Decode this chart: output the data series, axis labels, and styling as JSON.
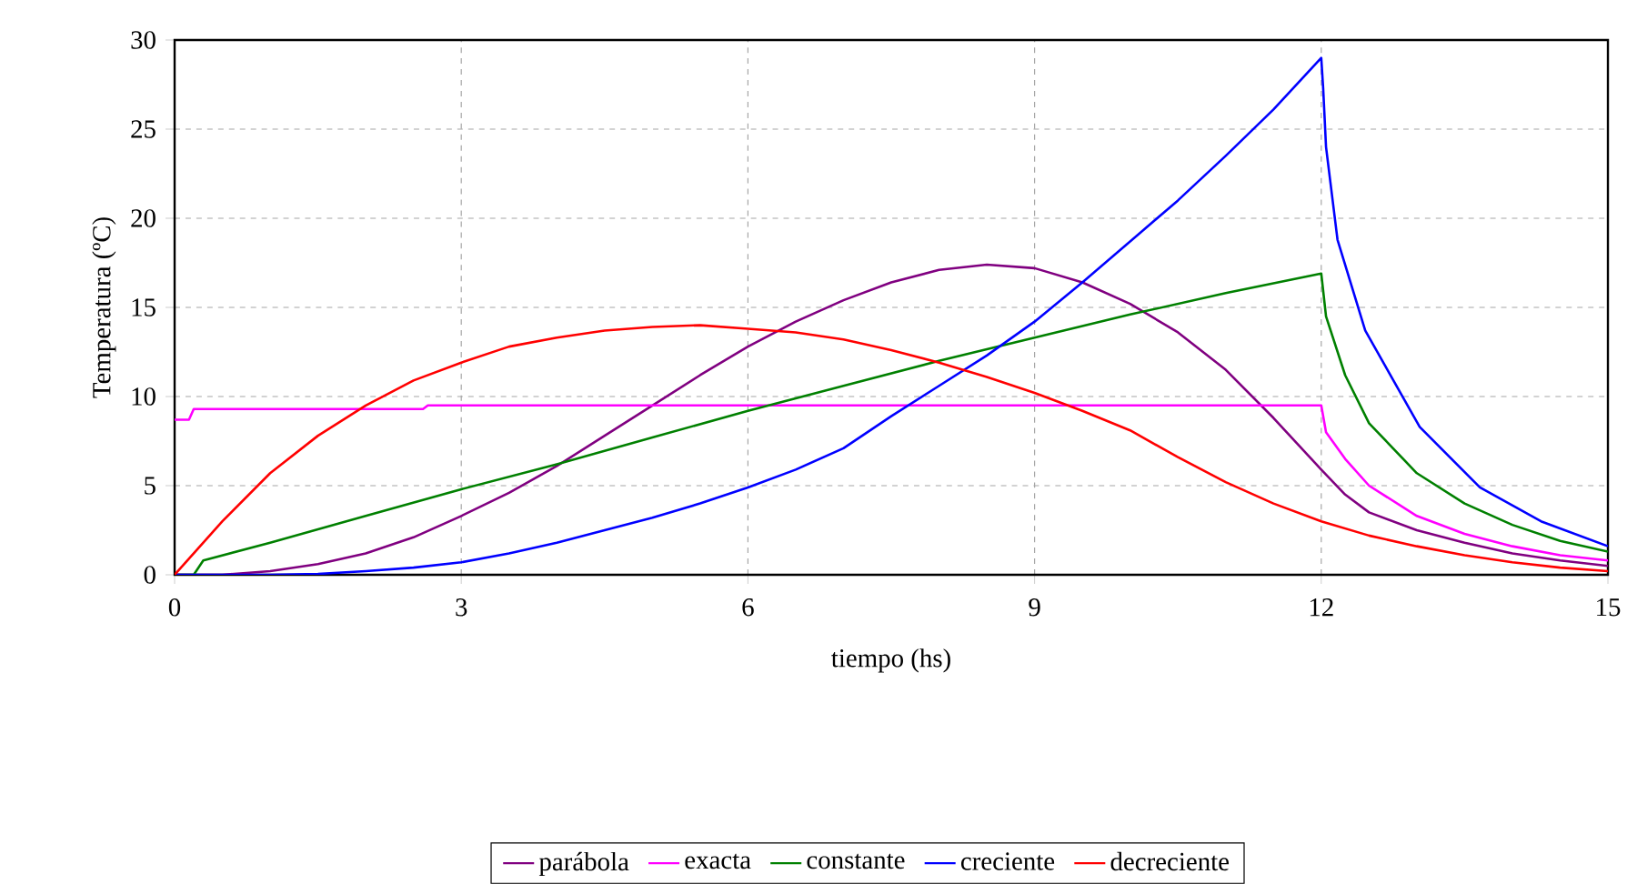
{
  "chart_data": {
    "type": "line",
    "xlabel": "tiempo (hs)",
    "ylabel": "Temperatura (ºC)",
    "xlim": [
      0,
      15
    ],
    "ylim": [
      0,
      30
    ],
    "xticks": [
      0,
      3,
      6,
      9,
      12,
      15
    ],
    "yticks": [
      0,
      5,
      10,
      15,
      20,
      25,
      30
    ],
    "grid": true,
    "legend": "bottom",
    "line_style": "solid",
    "marker": "none",
    "series": [
      {
        "name": "parábola",
        "color": "#800080",
        "x": [
          0,
          0.5,
          1,
          1.5,
          2,
          2.5,
          3,
          3.5,
          4,
          4.5,
          5,
          5.5,
          6,
          6.5,
          7,
          7.5,
          8,
          8.5,
          9,
          9.5,
          10,
          10.5,
          11,
          11.5,
          12,
          12.25,
          12.5,
          13,
          13.5,
          14,
          14.5,
          15
        ],
        "values": [
          0,
          0,
          0.2,
          0.6,
          1.2,
          2.1,
          3.3,
          4.6,
          6.1,
          7.8,
          9.5,
          11.2,
          12.8,
          14.2,
          15.4,
          16.4,
          17.1,
          17.4,
          17.2,
          16.4,
          15.2,
          13.6,
          11.5,
          8.8,
          5.9,
          4.5,
          3.5,
          2.5,
          1.8,
          1.2,
          0.8,
          0.5
        ]
      },
      {
        "name": "exacta",
        "color": "#ff00ff",
        "x": [
          0,
          0.15,
          0.2,
          2.6,
          2.65,
          12,
          12.05,
          12.25,
          12.5,
          13,
          13.5,
          14,
          14.5,
          15
        ],
        "values": [
          8.7,
          8.7,
          9.3,
          9.3,
          9.5,
          9.5,
          8.0,
          6.5,
          5.0,
          3.3,
          2.3,
          1.6,
          1.1,
          0.8
        ]
      },
      {
        "name": "constante",
        "color": "#008000",
        "x": [
          0,
          0.2,
          0.3,
          1,
          2,
          3,
          4,
          5,
          6,
          7,
          8,
          9,
          10,
          11,
          12,
          12.05,
          12.25,
          12.5,
          13,
          13.5,
          14,
          14.5,
          15
        ],
        "values": [
          0,
          0,
          0.8,
          1.8,
          3.3,
          4.8,
          6.2,
          7.7,
          9.2,
          10.6,
          12.0,
          13.3,
          14.6,
          15.8,
          16.9,
          14.5,
          11.2,
          8.5,
          5.7,
          4.0,
          2.8,
          1.9,
          1.3
        ]
      },
      {
        "name": "creciente",
        "color": "#0000ff",
        "x": [
          0,
          1,
          1.5,
          2,
          2.5,
          3,
          3.5,
          4,
          4.5,
          5,
          5.5,
          6,
          6.5,
          7,
          7.5,
          8,
          8.5,
          9,
          9.5,
          10,
          10.5,
          11,
          11.5,
          12,
          12.02,
          12.05,
          12.17,
          12.46,
          13.03,
          13.66,
          14.3,
          15
        ],
        "values": [
          0,
          0,
          0.05,
          0.2,
          0.4,
          0.7,
          1.2,
          1.8,
          2.5,
          3.2,
          4.0,
          4.9,
          5.9,
          7.1,
          8.9,
          10.6,
          12.3,
          14.2,
          16.4,
          18.7,
          21.0,
          23.5,
          26.1,
          29.0,
          27.3,
          24.0,
          18.8,
          13.7,
          8.3,
          4.9,
          3.0,
          1.6
        ]
      },
      {
        "name": "decreciente",
        "color": "#ff0000",
        "x": [
          0,
          0.5,
          1,
          1.5,
          2,
          2.5,
          3,
          3.5,
          4,
          4.5,
          5,
          5.5,
          6,
          6.5,
          7,
          7.5,
          8,
          8.5,
          9,
          9.5,
          10,
          10.5,
          11,
          11.5,
          12,
          12.5,
          13,
          13.5,
          14,
          14.5,
          15
        ],
        "values": [
          0,
          3.0,
          5.7,
          7.8,
          9.5,
          10.9,
          11.9,
          12.8,
          13.3,
          13.7,
          13.9,
          14.0,
          13.8,
          13.6,
          13.2,
          12.6,
          11.9,
          11.1,
          10.2,
          9.2,
          8.1,
          6.6,
          5.2,
          4.0,
          3.0,
          2.2,
          1.6,
          1.1,
          0.7,
          0.4,
          0.2
        ]
      }
    ]
  }
}
